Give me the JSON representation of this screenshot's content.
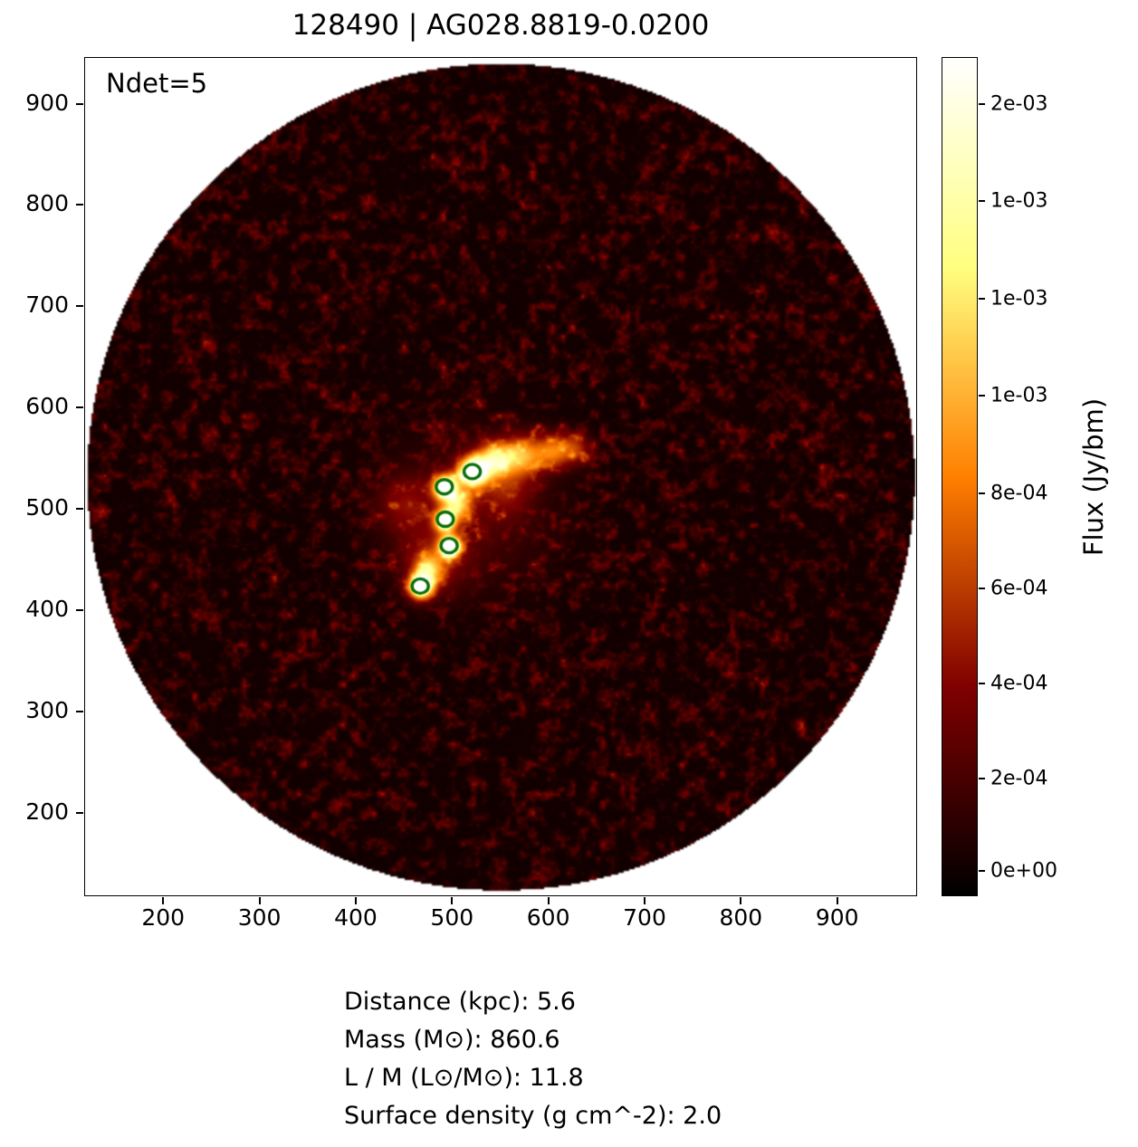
{
  "title": "128490 | AG028.8819-0.0200",
  "annotation": "Ndet=5",
  "footer": {
    "lines": [
      "Distance (kpc): 5.6",
      "Mass (M⊙): 860.6",
      "L / M (L⊙/M⊙): 11.8",
      "Surface density (g cm^-2): 2.0"
    ]
  },
  "chart_data": {
    "type": "heatmap",
    "title": "128490 | AG028.8819-0.0200",
    "annotation": "Ndet=5",
    "xlim": [
      118,
      983
    ],
    "ylim": [
      118,
      946
    ],
    "x_ticks": [
      200,
      300,
      400,
      500,
      600,
      700,
      800,
      900
    ],
    "y_ticks": [
      200,
      300,
      400,
      500,
      600,
      700,
      800,
      900
    ],
    "grid": false,
    "field_circle": {
      "cx": 550,
      "cy": 532,
      "radius": 414
    },
    "detections": [
      {
        "x": 492,
        "y": 522
      },
      {
        "x": 521,
        "y": 537
      },
      {
        "x": 493,
        "y": 490
      },
      {
        "x": 497,
        "y": 464
      },
      {
        "x": 467,
        "y": 424
      }
    ],
    "detection_color": "#0a6e0a",
    "colormap": "afmhot",
    "colormap_stops": [
      "#000000",
      "#400000",
      "#800000",
      "#bf4000",
      "#ff8000",
      "#ffbf40",
      "#ffff80",
      "#ffffbf",
      "#ffffff"
    ],
    "colorbar": {
      "label": "Flux (Jy/bm)",
      "ticks": [
        {
          "label": "2e-03",
          "frac_from_top": 0.056
        },
        {
          "label": "1e-03",
          "frac_from_top": 0.172
        },
        {
          "label": "1e-03",
          "frac_from_top": 0.288
        },
        {
          "label": "1e-03",
          "frac_from_top": 0.403
        },
        {
          "label": "8e-04",
          "frac_from_top": 0.52
        },
        {
          "label": "6e-04",
          "frac_from_top": 0.633
        },
        {
          "label": "4e-04",
          "frac_from_top": 0.747
        },
        {
          "label": "2e-04",
          "frac_from_top": 0.86
        },
        {
          "label": "0e+00",
          "frac_from_top": 0.97
        }
      ]
    }
  },
  "colors": {
    "background": "#ffffff",
    "text": "#000000",
    "axes": "#000000"
  }
}
